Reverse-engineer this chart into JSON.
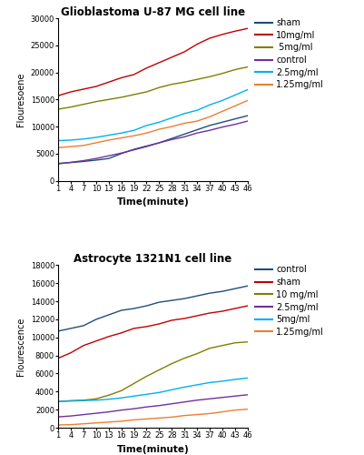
{
  "time": [
    1,
    4,
    7,
    10,
    13,
    16,
    19,
    22,
    25,
    28,
    31,
    34,
    37,
    40,
    43,
    46
  ],
  "chart1": {
    "title": "Glioblastoma U-87 MG cell line",
    "ylabel": "Flouresoene",
    "xlabel": "Time(minute)",
    "ylim": [
      0,
      30000
    ],
    "yticks": [
      0,
      5000,
      10000,
      15000,
      20000,
      25000,
      30000
    ],
    "series": {
      "sham": {
        "color": "#1f4e79",
        "label": "sham",
        "data": [
          3200,
          3350,
          3550,
          3800,
          4100,
          5000,
          5800,
          6400,
          7000,
          7800,
          8600,
          9400,
          10200,
          10800,
          11400,
          12000
        ]
      },
      "10mg": {
        "color": "#c00000",
        "label": "10mg/ml",
        "data": [
          15700,
          16400,
          16900,
          17400,
          18200,
          19000,
          19600,
          20800,
          21800,
          22800,
          23800,
          25200,
          26300,
          27000,
          27600,
          28100
        ]
      },
      "5mg": {
        "color": "#7f7f00",
        "label": " 5mg/ml",
        "data": [
          13200,
          13600,
          14100,
          14600,
          15000,
          15400,
          15900,
          16400,
          17200,
          17800,
          18200,
          18700,
          19200,
          19800,
          20500,
          21000
        ]
      },
      "control": {
        "color": "#7030a0",
        "label": "control",
        "data": [
          3100,
          3400,
          3700,
          4100,
          4600,
          5100,
          5700,
          6300,
          7000,
          7600,
          8100,
          8800,
          9300,
          9900,
          10400,
          11000
        ]
      },
      "2.5mg": {
        "color": "#00b0f0",
        "label": "2.5mg/ml",
        "data": [
          7400,
          7500,
          7700,
          8000,
          8400,
          8800,
          9300,
          10200,
          10800,
          11600,
          12400,
          13000,
          14000,
          14800,
          15800,
          16800
        ]
      },
      "1.25mg": {
        "color": "#ed7d31",
        "label": "1.25mg/ml",
        "data": [
          6100,
          6300,
          6500,
          7000,
          7500,
          7900,
          8300,
          8800,
          9500,
          10000,
          10600,
          11000,
          11800,
          12800,
          13800,
          14800
        ]
      }
    },
    "legend_order": [
      "sham",
      "10mg",
      "5mg",
      "control",
      "2.5mg",
      "1.25mg"
    ]
  },
  "chart2": {
    "title": "Astrocyte 1321N1 cell line",
    "ylabel": "Flourescence",
    "xlabel": "Time(minute)",
    "ylim": [
      0,
      18000
    ],
    "yticks": [
      0,
      2000,
      4000,
      6000,
      8000,
      10000,
      12000,
      14000,
      16000,
      18000
    ],
    "series": {
      "control": {
        "color": "#1f4e79",
        "label": "control",
        "data": [
          10700,
          11000,
          11300,
          12000,
          12500,
          13000,
          13200,
          13500,
          13900,
          14100,
          14300,
          14600,
          14900,
          15100,
          15400,
          15700
        ]
      },
      "sham": {
        "color": "#c00000",
        "label": "sham",
        "data": [
          7700,
          8300,
          9100,
          9600,
          10100,
          10500,
          11000,
          11200,
          11500,
          11900,
          12100,
          12400,
          12700,
          12900,
          13200,
          13500
        ]
      },
      "10mg": {
        "color": "#7f7f00",
        "label": "10 mg/ml",
        "data": [
          2900,
          3000,
          3050,
          3200,
          3600,
          4100,
          4900,
          5700,
          6400,
          7100,
          7700,
          8200,
          8800,
          9100,
          9400,
          9500
        ]
      },
      "2.5mg": {
        "color": "#7030a0",
        "label": "2.5mg/ml",
        "data": [
          1200,
          1300,
          1450,
          1600,
          1750,
          1950,
          2100,
          2300,
          2450,
          2650,
          2850,
          3050,
          3200,
          3350,
          3500,
          3650
        ]
      },
      "5mg": {
        "color": "#00b0f0",
        "label": "5mg/ml",
        "data": [
          2900,
          2950,
          3000,
          3050,
          3150,
          3300,
          3500,
          3700,
          3900,
          4200,
          4500,
          4750,
          5000,
          5150,
          5350,
          5500
        ]
      },
      "1.25mg": {
        "color": "#ed7d31",
        "label": "1.25mg/ml",
        "data": [
          300,
          340,
          430,
          530,
          620,
          720,
          870,
          970,
          1070,
          1170,
          1350,
          1450,
          1570,
          1750,
          1950,
          2050
        ]
      }
    },
    "legend_order": [
      "control",
      "sham",
      "10mg",
      "2.5mg",
      "5mg",
      "1.25mg"
    ]
  }
}
